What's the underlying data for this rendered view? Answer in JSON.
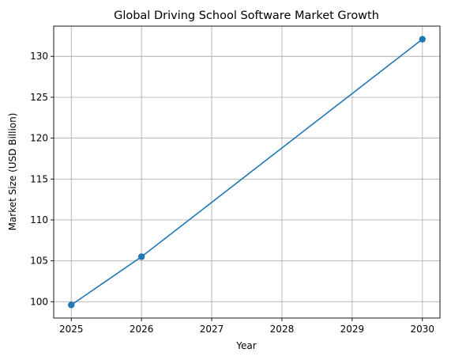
{
  "chart_data": {
    "type": "line",
    "title": "Global Driving School Software Market Growth",
    "xlabel": "Year",
    "ylabel": "Market Size (USD Billion)",
    "x": [
      2025,
      2026,
      2030
    ],
    "y": [
      99.6,
      105.5,
      132.1
    ],
    "xlim": [
      2024.75,
      2030.25
    ],
    "ylim": [
      98.0,
      133.7
    ],
    "xticks": [
      2025,
      2026,
      2027,
      2028,
      2029,
      2030
    ],
    "yticks": [
      100,
      105,
      110,
      115,
      120,
      125,
      130
    ],
    "grid": true,
    "line_color": "#1f77b4",
    "marker": "circle",
    "legend": false
  }
}
